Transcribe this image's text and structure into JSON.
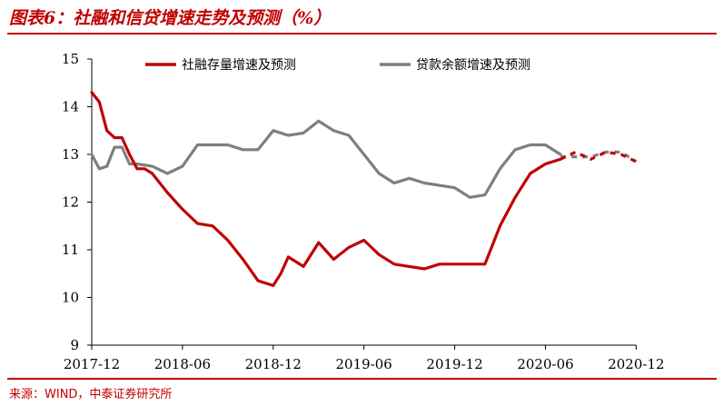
{
  "title": "图表6：社融和信贷增速走势及预测（%）",
  "source": "来源：WIND，中泰证券研究所",
  "chart_data": {
    "type": "line",
    "ylim": [
      9,
      15
    ],
    "yticks": [
      9,
      10,
      11,
      12,
      13,
      14,
      15
    ],
    "xlim": [
      0,
      36
    ],
    "xticks": [
      {
        "x": 0,
        "label": "2017-12"
      },
      {
        "x": 6,
        "label": "2018-06"
      },
      {
        "x": 12,
        "label": "2018-12"
      },
      {
        "x": 18,
        "label": "2019-06"
      },
      {
        "x": 24,
        "label": "2019-12"
      },
      {
        "x": 30,
        "label": "2020-06"
      },
      {
        "x": 36,
        "label": "2020-12"
      }
    ],
    "legend_position": "top",
    "series": [
      {
        "name": "社融存量增速及预测",
        "color": "#c00000",
        "actual": [
          [
            0,
            14.3
          ],
          [
            0.5,
            14.1
          ],
          [
            1,
            13.5
          ],
          [
            1.5,
            13.35
          ],
          [
            2,
            13.35
          ],
          [
            2.5,
            13.0
          ],
          [
            3,
            12.7
          ],
          [
            3.5,
            12.7
          ],
          [
            4,
            12.6
          ],
          [
            5,
            12.2
          ],
          [
            6,
            11.85
          ],
          [
            7,
            11.55
          ],
          [
            8,
            11.5
          ],
          [
            9,
            11.2
          ],
          [
            10,
            10.8
          ],
          [
            11,
            10.35
          ],
          [
            12,
            10.25
          ],
          [
            12.5,
            10.5
          ],
          [
            13,
            10.85
          ],
          [
            13.5,
            10.75
          ],
          [
            14,
            10.65
          ],
          [
            15,
            11.15
          ],
          [
            16,
            10.8
          ],
          [
            17,
            11.05
          ],
          [
            18,
            11.2
          ],
          [
            19,
            10.9
          ],
          [
            20,
            10.7
          ],
          [
            21,
            10.65
          ],
          [
            22,
            10.6
          ],
          [
            23,
            10.7
          ],
          [
            24,
            10.7
          ],
          [
            25,
            10.7
          ],
          [
            26,
            10.7
          ],
          [
            27,
            11.5
          ],
          [
            28,
            12.1
          ],
          [
            29,
            12.6
          ],
          [
            30,
            12.8
          ],
          [
            31,
            12.9
          ]
        ],
        "forecast": [
          [
            31,
            12.9
          ],
          [
            32,
            13.05
          ],
          [
            33,
            12.9
          ],
          [
            34,
            13.05
          ],
          [
            35,
            13.0
          ],
          [
            36,
            12.85
          ]
        ]
      },
      {
        "name": "贷款余额增速及预测",
        "color": "#7f7f7f",
        "actual": [
          [
            0,
            13.0
          ],
          [
            0.5,
            12.7
          ],
          [
            1,
            12.75
          ],
          [
            1.5,
            13.15
          ],
          [
            2,
            13.15
          ],
          [
            2.5,
            12.8
          ],
          [
            3,
            12.8
          ],
          [
            4,
            12.75
          ],
          [
            5,
            12.6
          ],
          [
            6,
            12.75
          ],
          [
            7,
            13.2
          ],
          [
            8,
            13.2
          ],
          [
            9,
            13.2
          ],
          [
            10,
            13.1
          ],
          [
            11,
            13.1
          ],
          [
            12,
            13.5
          ],
          [
            13,
            13.4
          ],
          [
            14,
            13.45
          ],
          [
            15,
            13.7
          ],
          [
            16,
            13.5
          ],
          [
            17,
            13.4
          ],
          [
            18,
            13.0
          ],
          [
            19,
            12.6
          ],
          [
            20,
            12.4
          ],
          [
            21,
            12.5
          ],
          [
            22,
            12.4
          ],
          [
            23,
            12.35
          ],
          [
            24,
            12.3
          ],
          [
            25,
            12.1
          ],
          [
            26,
            12.15
          ],
          [
            27,
            12.7
          ],
          [
            28,
            13.1
          ],
          [
            29,
            13.2
          ],
          [
            30,
            13.2
          ],
          [
            31,
            13.0
          ]
        ],
        "forecast": [
          [
            31,
            12.95
          ],
          [
            32,
            12.95
          ],
          [
            33,
            12.95
          ],
          [
            34,
            13.05
          ],
          [
            35,
            13.05
          ],
          [
            36,
            12.85
          ]
        ]
      }
    ]
  }
}
